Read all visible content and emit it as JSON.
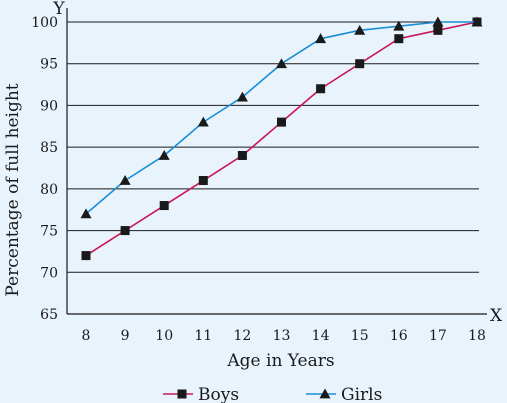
{
  "chart_data": {
    "type": "line",
    "title": "",
    "xlabel": "Age in Years",
    "ylabel": "Percentage of full height",
    "x_axis_letter": "X",
    "y_axis_letter": "Y",
    "x": [
      8,
      9,
      10,
      11,
      12,
      13,
      14,
      15,
      16,
      17,
      18
    ],
    "x_ticks": [
      "8",
      "9",
      "10",
      "11",
      "12",
      "13",
      "14",
      "15",
      "16",
      "17",
      "18"
    ],
    "y_ticks": [
      "65",
      "70",
      "75",
      "80",
      "85",
      "90",
      "95",
      "100"
    ],
    "ylim": [
      65,
      100
    ],
    "xlim": [
      8,
      18
    ],
    "grid": "horizontal",
    "legend_position": "bottom",
    "series": [
      {
        "name": "Boys",
        "marker": "square",
        "color": "#c8185a",
        "values": [
          72,
          75,
          78,
          81,
          84,
          88,
          92,
          95,
          98,
          99,
          100
        ]
      },
      {
        "name": "Girls",
        "marker": "triangle",
        "color": "#1a8fd6",
        "values": [
          77,
          81,
          84,
          88,
          91,
          95,
          98,
          99,
          99.5,
          100,
          100
        ]
      }
    ]
  }
}
